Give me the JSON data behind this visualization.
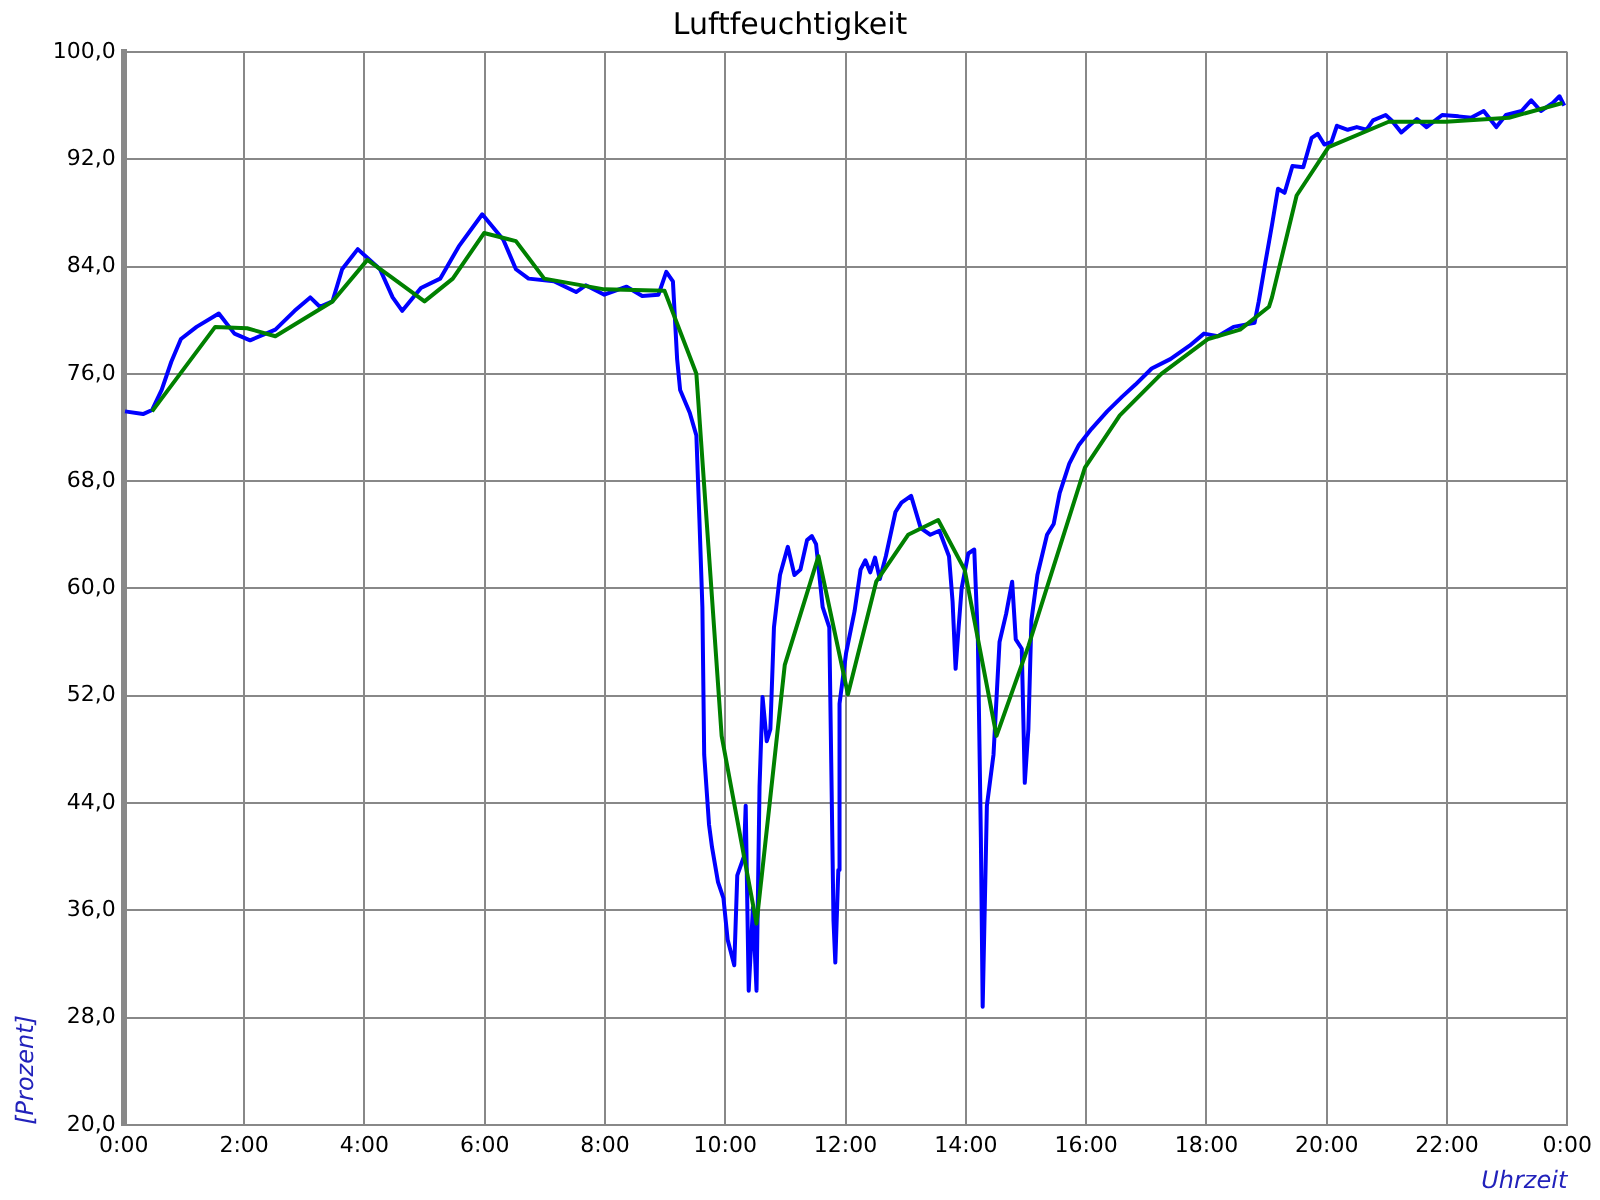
{
  "chart_data": {
    "type": "line",
    "title": "Luftfeuchtigkeit",
    "xlabel": "Uhrzeit",
    "ylabel": "[Prozent]",
    "xlim": [
      0,
      24
    ],
    "ylim": [
      20,
      100
    ],
    "xticks": [
      {
        "value": 0,
        "label": "0:00"
      },
      {
        "value": 2,
        "label": "2:00"
      },
      {
        "value": 4,
        "label": "4:00"
      },
      {
        "value": 6,
        "label": "6:00"
      },
      {
        "value": 8,
        "label": "8:00"
      },
      {
        "value": 10,
        "label": "10:00"
      },
      {
        "value": 12,
        "label": "12:00"
      },
      {
        "value": 14,
        "label": "14:00"
      },
      {
        "value": 16,
        "label": "16:00"
      },
      {
        "value": 18,
        "label": "18:00"
      },
      {
        "value": 20,
        "label": "20:00"
      },
      {
        "value": 22,
        "label": "22:00"
      },
      {
        "value": 24,
        "label": "0:00"
      }
    ],
    "yticks": [
      {
        "value": 20,
        "label": "20,0"
      },
      {
        "value": 28,
        "label": "28,0"
      },
      {
        "value": 36,
        "label": "36,0"
      },
      {
        "value": 44,
        "label": "44,0"
      },
      {
        "value": 52,
        "label": "52,0"
      },
      {
        "value": 60,
        "label": "60,0"
      },
      {
        "value": 68,
        "label": "68,0"
      },
      {
        "value": 76,
        "label": "76,0"
      },
      {
        "value": 84,
        "label": "84,0"
      },
      {
        "value": 92,
        "label": "92,0"
      },
      {
        "value": 100,
        "label": "100,0"
      }
    ],
    "grid": true,
    "legend": false,
    "marker": "none",
    "line_style": "solid",
    "series": [
      {
        "color": "#0000ff",
        "x": [
          0.02,
          0.32,
          0.47,
          0.63,
          0.79,
          0.95,
          1.21,
          1.58,
          1.84,
          2.1,
          2.52,
          2.84,
          3.1,
          3.26,
          3.47,
          3.63,
          3.89,
          4.26,
          4.47,
          4.63,
          4.94,
          5.26,
          5.57,
          5.96,
          6.31,
          6.52,
          6.73,
          7.15,
          7.52,
          7.68,
          7.99,
          8.36,
          8.62,
          8.89,
          9.02,
          9.13,
          9.2,
          9.25,
          9.41,
          9.52,
          9.57,
          9.62,
          9.65,
          9.73,
          9.78,
          9.88,
          9.97,
          10.04,
          10.15,
          10.2,
          10.31,
          10.34,
          10.39,
          10.46,
          10.52,
          10.57,
          10.62,
          10.69,
          10.75,
          10.81,
          10.91,
          11.04,
          11.15,
          11.25,
          11.36,
          11.44,
          11.51,
          11.62,
          11.73,
          11.8,
          11.83,
          11.88,
          11.9,
          12.01,
          12.15,
          12.25,
          12.33,
          12.41,
          12.49,
          12.57,
          12.67,
          12.83,
          12.93,
          13.09,
          13.25,
          13.41,
          13.56,
          13.72,
          13.78,
          13.83,
          13.88,
          13.93,
          14.04,
          14.14,
          14.2,
          14.25,
          14.28,
          14.35,
          14.46,
          14.56,
          14.67,
          14.77,
          14.83,
          14.93,
          14.98,
          15.04,
          15.09,
          15.19,
          15.35,
          15.46,
          15.56,
          15.72,
          15.88,
          16.09,
          16.35,
          16.6,
          16.82,
          17.09,
          17.4,
          17.72,
          17.96,
          18.19,
          18.45,
          18.8,
          18.87,
          18.98,
          19.09,
          19.19,
          19.3,
          19.43,
          19.61,
          19.75,
          19.85,
          19.96,
          20.08,
          20.17,
          20.35,
          20.5,
          20.66,
          20.77,
          20.98,
          21.08,
          21.24,
          21.5,
          21.66,
          21.92,
          22.19,
          22.4,
          22.61,
          22.82,
          22.98,
          23.24,
          23.4,
          23.56,
          23.76,
          23.87,
          23.95
        ],
        "values": [
          73.2,
          73.0,
          73.3,
          74.8,
          76.9,
          78.6,
          79.5,
          80.5,
          79.0,
          78.5,
          79.3,
          80.7,
          81.7,
          81.0,
          81.4,
          83.8,
          85.3,
          83.8,
          81.7,
          80.7,
          82.4,
          83.1,
          85.5,
          87.9,
          86.0,
          83.8,
          83.1,
          82.9,
          82.1,
          82.6,
          81.9,
          82.5,
          81.8,
          81.9,
          83.6,
          82.9,
          77.1,
          74.8,
          73.1,
          71.4,
          65.2,
          58.6,
          47.6,
          42.4,
          40.7,
          38.1,
          36.9,
          33.8,
          31.9,
          38.6,
          40.0,
          43.8,
          30.0,
          36.2,
          30.0,
          45.2,
          51.9,
          48.6,
          49.5,
          57.1,
          61.0,
          63.1,
          61.0,
          61.4,
          63.6,
          63.9,
          63.3,
          58.6,
          57.1,
          35.2,
          32.1,
          39.0,
          51.4,
          55.2,
          58.3,
          61.4,
          62.1,
          61.2,
          62.3,
          60.7,
          62.4,
          65.7,
          66.4,
          66.9,
          64.5,
          64.0,
          64.3,
          62.4,
          59.0,
          54.0,
          57.1,
          60.0,
          62.6,
          62.9,
          56.2,
          41.4,
          28.8,
          43.8,
          47.6,
          56.0,
          58.1,
          60.5,
          56.2,
          55.5,
          45.5,
          49.5,
          57.6,
          61.0,
          64.0,
          64.8,
          67.1,
          69.3,
          70.7,
          71.9,
          73.2,
          74.3,
          75.2,
          76.4,
          77.1,
          78.1,
          79.0,
          78.8,
          79.5,
          79.8,
          81.4,
          84.3,
          87.1,
          89.8,
          89.5,
          91.5,
          91.4,
          93.6,
          93.9,
          93.1,
          93.3,
          94.5,
          94.2,
          94.4,
          94.2,
          94.9,
          95.3,
          94.9,
          94.0,
          95.0,
          94.4,
          95.3,
          95.2,
          95.1,
          95.6,
          94.4,
          95.3,
          95.6,
          96.4,
          95.6,
          96.2,
          96.7,
          96.0
        ]
      },
      {
        "color": "#008000",
        "x": [
          0.47,
          1.52,
          2.05,
          2.52,
          3.47,
          4.05,
          4.42,
          5.0,
          5.47,
          5.99,
          6.52,
          6.99,
          7.99,
          8.99,
          9.52,
          9.94,
          10.52,
          10.99,
          11.55,
          12.04,
          12.51,
          13.04,
          13.54,
          13.98,
          14.51,
          15.04,
          15.98,
          16.56,
          17.25,
          18.03,
          18.56,
          19.04,
          19.09,
          19.5,
          20.03,
          21.03,
          21.98,
          23.03,
          23.92
        ],
        "values": [
          73.2,
          79.5,
          79.4,
          78.8,
          81.4,
          84.5,
          83.3,
          81.4,
          83.1,
          86.5,
          85.9,
          83.1,
          82.3,
          82.2,
          76.0,
          49.0,
          35.0,
          54.3,
          62.4,
          52.1,
          60.5,
          64.0,
          65.1,
          61.4,
          49.0,
          55.7,
          69.0,
          72.9,
          76.0,
          78.6,
          79.3,
          81.0,
          81.7,
          89.3,
          92.9,
          94.8,
          94.8,
          95.1,
          96.2
        ]
      }
    ]
  }
}
